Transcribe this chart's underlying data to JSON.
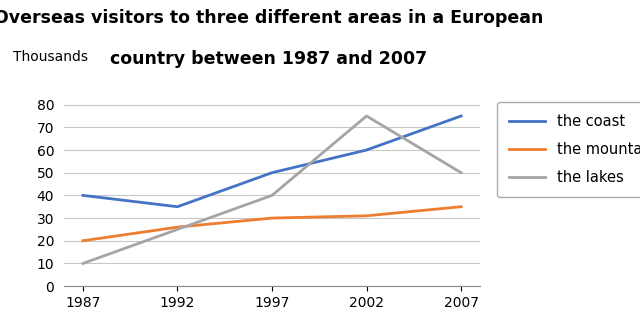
{
  "title_line1": "Overseas visitors to three different areas in a European",
  "title_line2": "country between 1987 and 2007",
  "ylabel": "Thousands",
  "years": [
    1987,
    1992,
    1997,
    2002,
    2007
  ],
  "series": [
    {
      "label": "the coast",
      "color": "#4472C4",
      "values": [
        40,
        35,
        50,
        60,
        75
      ]
    },
    {
      "label": "the mountains",
      "color": "#ED7D31",
      "values": [
        20,
        26,
        30,
        31,
        35
      ]
    },
    {
      "label": "the lakes",
      "color": "#A5A5A5",
      "values": [
        10,
        25,
        40,
        75,
        50
      ]
    }
  ],
  "ylim": [
    0,
    85
  ],
  "yticks": [
    0,
    10,
    20,
    30,
    40,
    50,
    60,
    70,
    80
  ],
  "background_color": "#ffffff",
  "title_fontsize": 12.5,
  "legend_fontsize": 10.5,
  "tick_fontsize": 10,
  "ylabel_fontsize": 10
}
